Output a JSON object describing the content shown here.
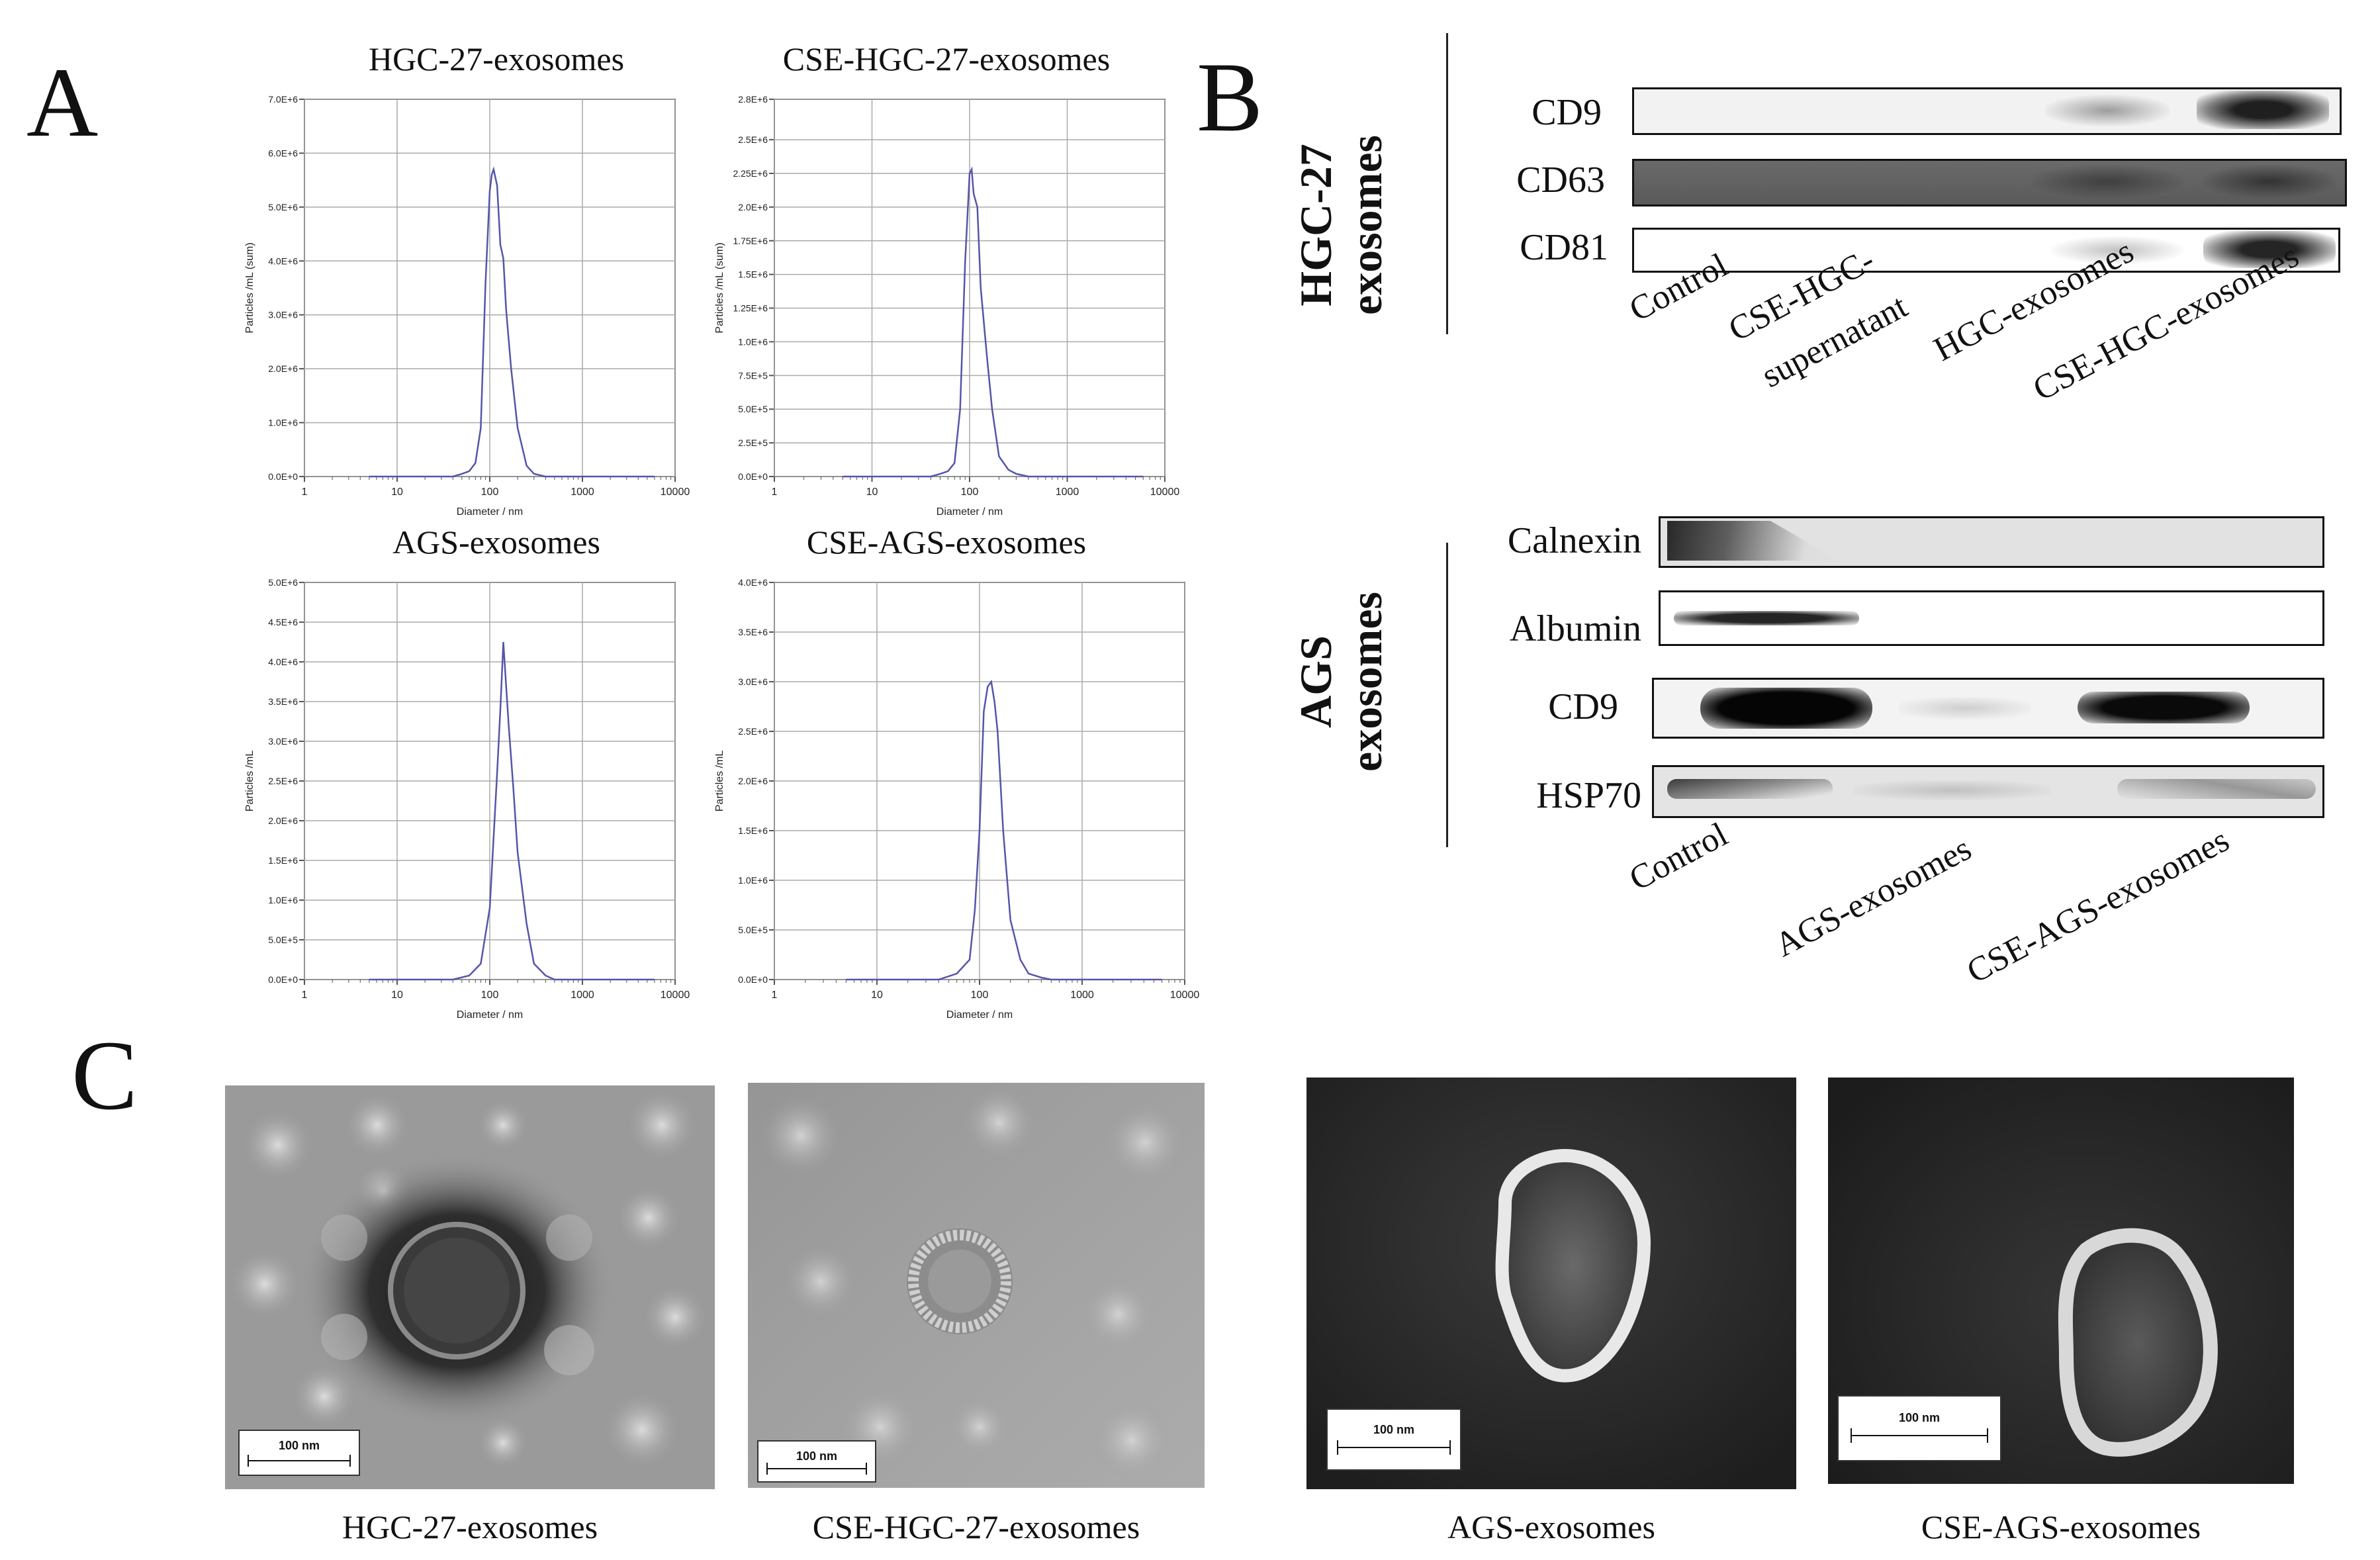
{
  "panels": {
    "a": "A",
    "b": "B",
    "c": "C"
  },
  "colors": {
    "line": "#5555aa",
    "grid": "#aaaaaa",
    "axis": "#555555"
  },
  "chart_data": [
    {
      "type": "line",
      "title": "HGC-27-exosomes",
      "xlabel": "Diameter / nm",
      "ylabel": "Particles /mL (sum)",
      "xscale": "log",
      "xlim": [
        1,
        10000
      ],
      "xticks": [
        "1",
        "10",
        "100",
        "1000",
        "10000"
      ],
      "ylim": [
        0,
        7000000
      ],
      "yticks": [
        "0.0E+0",
        "1.0E+6",
        "2.0E+6",
        "3.0E+6",
        "4.0E+6",
        "5.0E+6",
        "6.0E+6",
        "7.0E+6"
      ],
      "ytickvals": [
        0,
        1000000,
        2000000,
        3000000,
        4000000,
        5000000,
        6000000,
        7000000
      ],
      "x": [
        5,
        40,
        50,
        60,
        70,
        80,
        90,
        100,
        105,
        110,
        120,
        130,
        140,
        150,
        170,
        200,
        250,
        300,
        400,
        6000
      ],
      "y": [
        0,
        0,
        50000,
        100000,
        250000,
        900000,
        3600000,
        5300000,
        5600000,
        5700000,
        5400000,
        4300000,
        4050000,
        3100000,
        2000000,
        900000,
        200000,
        50000,
        0,
        0
      ]
    },
    {
      "type": "line",
      "title": "CSE-HGC-27-exosomes",
      "xlabel": "Diameter / nm",
      "ylabel": "Particles /mL (sum)",
      "xscale": "log",
      "xlim": [
        1,
        10000
      ],
      "xticks": [
        "1",
        "10",
        "100",
        "1000",
        "10000"
      ],
      "ylim": [
        0,
        2800000
      ],
      "yticks": [
        "0.0E+0",
        "2.5E+5",
        "5.0E+5",
        "7.5E+5",
        "1.0E+6",
        "1.25E+6",
        "1.5E+6",
        "1.75E+6",
        "2.0E+6",
        "2.25E+6",
        "2.5E+6",
        "2.8E+6"
      ],
      "ytickvals": [
        0,
        250000,
        500000,
        750000,
        1000000,
        1250000,
        1500000,
        1750000,
        2000000,
        2250000,
        2500000,
        2800000
      ],
      "x": [
        5,
        40,
        50,
        60,
        70,
        80,
        90,
        100,
        105,
        110,
        120,
        130,
        150,
        170,
        200,
        250,
        300,
        400,
        6000
      ],
      "y": [
        0,
        0,
        20000,
        40000,
        100000,
        500000,
        1600000,
        2250000,
        2280000,
        2100000,
        2000000,
        1400000,
        900000,
        500000,
        150000,
        50000,
        20000,
        0,
        0
      ]
    },
    {
      "type": "line",
      "title": "AGS-exosomes",
      "xlabel": "Diameter / nm",
      "ylabel": "Particles /mL",
      "xscale": "log",
      "xlim": [
        1,
        10000
      ],
      "xticks": [
        "1",
        "10",
        "100",
        "1000",
        "10000"
      ],
      "ylim": [
        0,
        5000000
      ],
      "yticks": [
        "0.0E+0",
        "5.0E+5",
        "1.0E+6",
        "1.5E+6",
        "2.0E+6",
        "2.5E+6",
        "3.0E+6",
        "3.5E+6",
        "4.0E+6",
        "4.5E+6",
        "5.0E+6"
      ],
      "ytickvals": [
        0,
        500000,
        1000000,
        1500000,
        2000000,
        2500000,
        3000000,
        3500000,
        4000000,
        4500000,
        5000000
      ],
      "x": [
        5,
        40,
        60,
        80,
        100,
        120,
        130,
        140,
        150,
        160,
        180,
        200,
        250,
        300,
        400,
        500,
        6000
      ],
      "y": [
        0,
        0,
        50000,
        200000,
        900000,
        2600000,
        3400000,
        4250000,
        3700000,
        3200000,
        2400000,
        1600000,
        700000,
        200000,
        50000,
        0,
        0
      ]
    },
    {
      "type": "line",
      "title": "CSE-AGS-exosomes",
      "xlabel": "Diameter / nm",
      "ylabel": "Particles /mL",
      "xscale": "log",
      "xlim": [
        1,
        10000
      ],
      "xticks": [
        "1",
        "10",
        "100",
        "1000",
        "10000"
      ],
      "ylim": [
        0,
        4000000
      ],
      "yticks": [
        "0.0E+0",
        "5.0E+5",
        "1.0E+6",
        "1.5E+6",
        "2.0E+6",
        "2.5E+6",
        "3.0E+6",
        "3.5E+6",
        "4.0E+6"
      ],
      "ytickvals": [
        0,
        500000,
        1000000,
        1500000,
        2000000,
        2500000,
        3000000,
        3500000,
        4000000
      ],
      "x": [
        5,
        40,
        60,
        80,
        90,
        100,
        110,
        120,
        130,
        140,
        150,
        170,
        200,
        250,
        300,
        400,
        500,
        6000
      ],
      "y": [
        0,
        0,
        60000,
        200000,
        700000,
        1500000,
        2700000,
        2950000,
        3000000,
        2800000,
        2500000,
        1500000,
        600000,
        200000,
        60000,
        20000,
        0,
        0
      ]
    }
  ],
  "western": {
    "hgc": {
      "group_label_line1": "HGC-27",
      "group_label_line2": "exosomes",
      "bands": [
        {
          "label": "CD9"
        },
        {
          "label": "CD63"
        },
        {
          "label": "CD81"
        }
      ],
      "lanes": [
        "Control",
        "CSE-HGC-",
        "supernatant",
        "HGC-exosomes",
        "CSE-HGC-exosomes"
      ]
    },
    "ags": {
      "group_label_line1": "AGS",
      "group_label_line2": "exosomes",
      "bands": [
        {
          "label": "Calnexin"
        },
        {
          "label": "Albumin"
        },
        {
          "label": "CD9"
        },
        {
          "label": "HSP70"
        }
      ],
      "lanes": [
        "Control",
        "AGS-exosomes",
        "CSE-AGS-exosomes"
      ]
    }
  },
  "em": [
    {
      "caption": "HGC-27-exosomes",
      "scale": "100 nm"
    },
    {
      "caption": "CSE-HGC-27-exosomes",
      "scale": "100 nm"
    },
    {
      "caption": "AGS-exosomes",
      "scale": "100 nm"
    },
    {
      "caption": "CSE-AGS-exosomes",
      "scale": "100 nm"
    }
  ]
}
